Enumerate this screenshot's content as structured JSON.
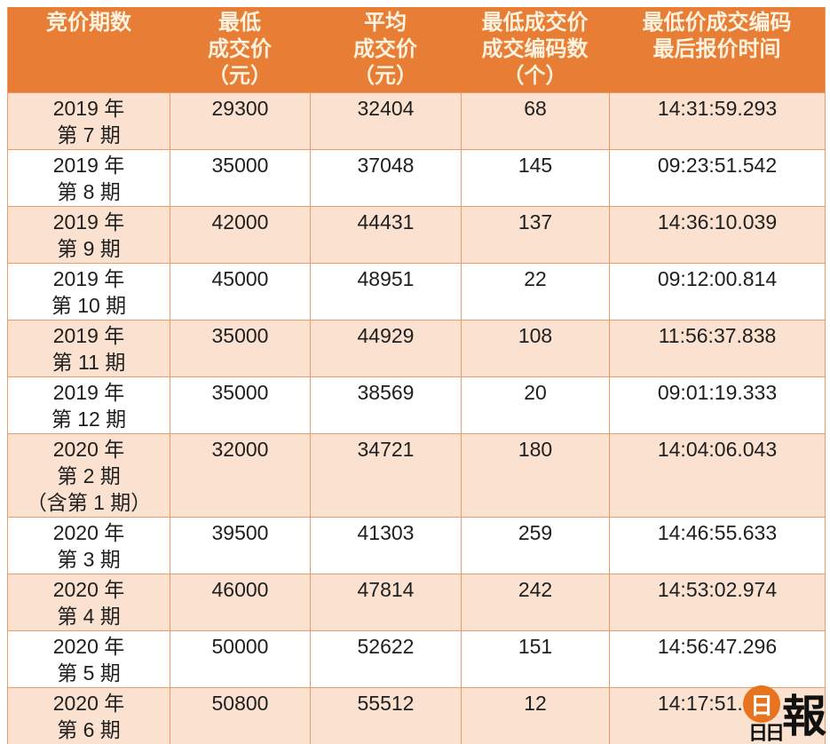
{
  "table": {
    "columns": [
      {
        "id": "period",
        "header_lines": [
          "竞价期数"
        ]
      },
      {
        "id": "min_price",
        "header_lines": [
          "最低",
          "成交价",
          "（元）"
        ]
      },
      {
        "id": "avg_price",
        "header_lines": [
          "平均",
          "成交价",
          "（元）"
        ]
      },
      {
        "id": "code_count",
        "header_lines": [
          "最低成交价",
          "成交编码数",
          "（个）"
        ]
      },
      {
        "id": "last_time",
        "header_lines": [
          "最低价成交编码",
          "最后报价时间"
        ]
      }
    ],
    "rows": [
      {
        "period": [
          "2019 年",
          "第 7 期"
        ],
        "min_price": "29300",
        "avg_price": "32404",
        "code_count": "68",
        "last_time": "14:31:59.293"
      },
      {
        "period": [
          "2019 年",
          "第 8 期"
        ],
        "min_price": "35000",
        "avg_price": "37048",
        "code_count": "145",
        "last_time": "09:23:51.542"
      },
      {
        "period": [
          "2019 年",
          "第 9 期"
        ],
        "min_price": "42000",
        "avg_price": "44431",
        "code_count": "137",
        "last_time": "14:36:10.039"
      },
      {
        "period": [
          "2019 年",
          "第 10 期"
        ],
        "min_price": "45000",
        "avg_price": "48951",
        "code_count": "22",
        "last_time": "09:12:00.814"
      },
      {
        "period": [
          "2019 年",
          "第 11 期"
        ],
        "min_price": "35000",
        "avg_price": "44929",
        "code_count": "108",
        "last_time": "11:56:37.838"
      },
      {
        "period": [
          "2019 年",
          "第 12 期"
        ],
        "min_price": "35000",
        "avg_price": "38569",
        "code_count": "20",
        "last_time": "09:01:19.333"
      },
      {
        "period": [
          "2020 年",
          "第 2 期",
          "（含第 1 期）"
        ],
        "min_price": "32000",
        "avg_price": "34721",
        "code_count": "180",
        "last_time": "14:04:06.043"
      },
      {
        "period": [
          "2020 年",
          "第 3 期"
        ],
        "min_price": "39500",
        "avg_price": "41303",
        "code_count": "259",
        "last_time": "14:46:55.633"
      },
      {
        "period": [
          "2020 年",
          "第 4 期"
        ],
        "min_price": "46000",
        "avg_price": "47814",
        "code_count": "242",
        "last_time": "14:53:02.974"
      },
      {
        "period": [
          "2020 年",
          "第 5 期"
        ],
        "min_price": "50000",
        "avg_price": "52622",
        "code_count": "151",
        "last_time": "14:56:47.296"
      },
      {
        "period": [
          "2020 年",
          "第 6 期"
        ],
        "min_price": "50800",
        "avg_price": "55512",
        "code_count": "12",
        "last_time": "14:17:51.601"
      }
    ]
  },
  "chart_data": {
    "type": "table",
    "title": "",
    "columns": [
      "竞价期数",
      "最低成交价（元）",
      "平均成交价（元）",
      "最低成交价成交编码数（个）",
      "最低价成交编码最后报价时间"
    ],
    "rows": [
      [
        "2019年第7期",
        29300,
        32404,
        68,
        "14:31:59.293"
      ],
      [
        "2019年第8期",
        35000,
        37048,
        145,
        "09:23:51.542"
      ],
      [
        "2019年第9期",
        42000,
        44431,
        137,
        "14:36:10.039"
      ],
      [
        "2019年第10期",
        45000,
        48951,
        22,
        "09:12:00.814"
      ],
      [
        "2019年第11期",
        35000,
        44929,
        108,
        "11:56:37.838"
      ],
      [
        "2019年第12期",
        35000,
        38569,
        20,
        "09:01:19.333"
      ],
      [
        "2020年第2期（含第1期）",
        32000,
        34721,
        180,
        "14:04:06.043"
      ],
      [
        "2020年第3期",
        39500,
        41303,
        259,
        "14:46:55.633"
      ],
      [
        "2020年第4期",
        46000,
        47814,
        242,
        "14:53:02.974"
      ],
      [
        "2020年第5期",
        50000,
        52622,
        151,
        "14:56:47.296"
      ],
      [
        "2020年第6期",
        50800,
        55512,
        12,
        "14:17:51.601"
      ]
    ]
  },
  "colors": {
    "header_bg": "#E87E35",
    "header_text": "#FBF2DF",
    "row_alt_bg": "#FBE2D0",
    "border": "#E99B6C",
    "body_text": "#1F1F1F",
    "logo_orange": "#E8731E"
  },
  "logo": {
    "name": "晶报",
    "circle_char": "日",
    "bottom_chars": "日日",
    "main_char": "報"
  }
}
